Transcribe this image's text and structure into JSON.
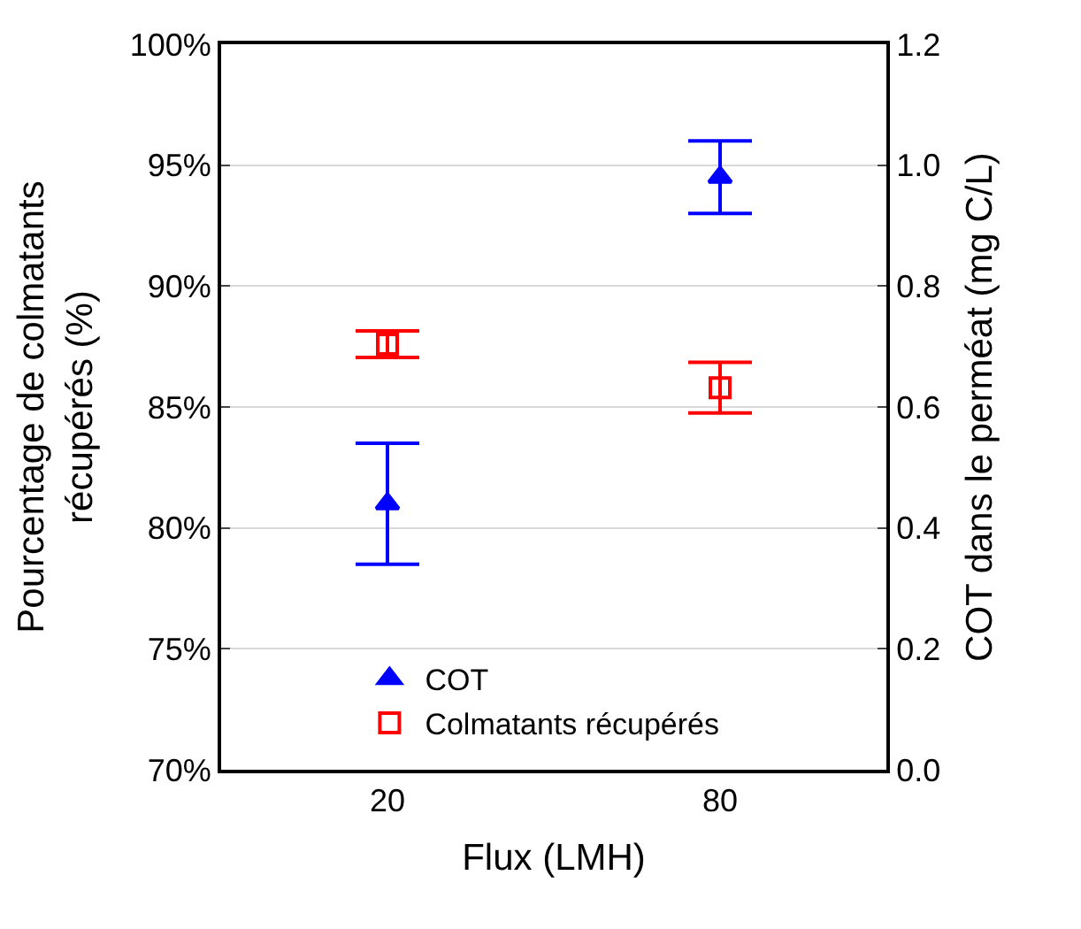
{
  "chart_data": {
    "type": "scatter",
    "xlabel": "Flux (LMH)",
    "ylabel": "Pourcentage de colmatants\nrécupérés (%)",
    "y2label": "COT dans le perméat (mg C/L)",
    "categories": [
      "20",
      "80"
    ],
    "series": [
      {
        "name": "COT",
        "color": "#0000ff",
        "values": [
          0.44,
          0.98
        ],
        "errors": [
          0.1,
          0.06
        ],
        "axis": "y2",
        "marker": "triangle"
      },
      {
        "name": "Colmatants récupérés",
        "color": "#ff0000",
        "values": [
          87.6,
          85.8
        ],
        "errors": [
          0.55,
          1.05
        ],
        "marker": "square"
      }
    ],
    "ylim": [
      70,
      100
    ],
    "yticks": [
      {
        "value": 70,
        "label": "70%"
      },
      {
        "value": 75,
        "label": "75%"
      },
      {
        "value": 80,
        "label": "80%"
      },
      {
        "value": 85,
        "label": "85%"
      },
      {
        "value": 90,
        "label": "90%"
      },
      {
        "value": 95,
        "label": "95%"
      },
      {
        "value": 100,
        "label": "100%"
      }
    ],
    "y2lim": [
      0,
      1.2
    ],
    "y2ticks": [
      {
        "value": 0,
        "label": "0.0"
      },
      {
        "value": 0.2,
        "label": "0.2"
      },
      {
        "value": 0.4,
        "label": "0.4"
      },
      {
        "value": 0.6,
        "label": "0.6"
      },
      {
        "value": 0.8,
        "label": "0.8"
      },
      {
        "value": 1.0,
        "label": "1.0"
      },
      {
        "value": 1.2,
        "label": "1.2"
      }
    ],
    "grid": "y",
    "legend": "bottom left"
  }
}
